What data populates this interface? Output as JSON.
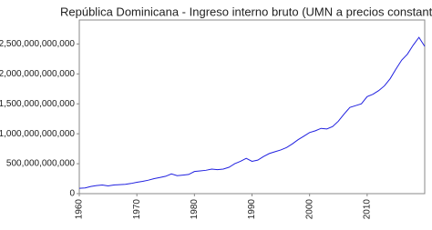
{
  "chart_data": {
    "type": "line",
    "title": "República Dominicana - Ingreso interno bruto (UMN a precios constante",
    "x": [
      1960,
      1961,
      1962,
      1963,
      1964,
      1965,
      1966,
      1967,
      1968,
      1969,
      1970,
      1971,
      1972,
      1973,
      1974,
      1975,
      1976,
      1977,
      1978,
      1979,
      1980,
      1981,
      1982,
      1983,
      1984,
      1985,
      1986,
      1987,
      1988,
      1989,
      1990,
      1991,
      1992,
      1993,
      1994,
      1995,
      1996,
      1997,
      1998,
      1999,
      2000,
      2001,
      2002,
      2003,
      2004,
      2005,
      2006,
      2007,
      2008,
      2009,
      2010,
      2011,
      2012,
      2013,
      2014,
      2015,
      2016,
      2017,
      2018,
      2019,
      2020
    ],
    "series": [
      {
        "color": "#2020e0",
        "values": [
          90000000000,
          95000000000,
          120000000000,
          135000000000,
          145000000000,
          130000000000,
          145000000000,
          150000000000,
          155000000000,
          170000000000,
          190000000000,
          205000000000,
          225000000000,
          250000000000,
          270000000000,
          290000000000,
          330000000000,
          300000000000,
          310000000000,
          320000000000,
          370000000000,
          380000000000,
          390000000000,
          410000000000,
          400000000000,
          410000000000,
          440000000000,
          500000000000,
          540000000000,
          590000000000,
          540000000000,
          560000000000,
          620000000000,
          670000000000,
          700000000000,
          730000000000,
          770000000000,
          830000000000,
          900000000000,
          960000000000,
          1020000000000,
          1050000000000,
          1090000000000,
          1080000000000,
          1120000000000,
          1210000000000,
          1330000000000,
          1440000000000,
          1470000000000,
          1500000000000,
          1620000000000,
          1660000000000,
          1720000000000,
          1800000000000,
          1920000000000,
          2080000000000,
          2230000000000,
          2330000000000,
          2480000000000,
          2610000000000,
          2460000000000
        ]
      }
    ],
    "xlim": [
      1960,
      2020
    ],
    "xticks": [
      1960,
      1970,
      1980,
      1990,
      2000,
      2010
    ],
    "ylim": [
      0,
      2900000000000
    ],
    "yticks": [
      0,
      {
        "value": 500000000000,
        "label": "500,000,000,000"
      },
      {
        "value": 1000000000000,
        "label": "1,000,000,000,000"
      },
      {
        "value": 1500000000000,
        "label": "1,500,000,000,000"
      },
      {
        "value": 2000000000000,
        "label": "2,000,000,000,000"
      },
      {
        "value": 2500000000000,
        "label": "2,500,000,000,000"
      }
    ],
    "grid": false
  }
}
